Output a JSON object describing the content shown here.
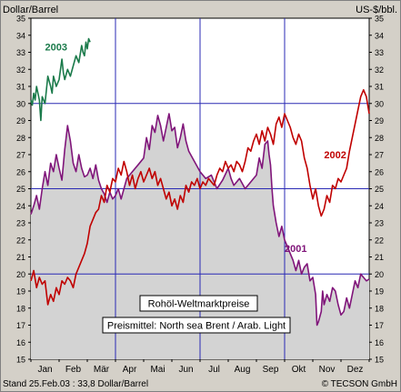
{
  "header": {
    "left_unit": "Dollar/Barrel",
    "right_unit": "US-$/bbl."
  },
  "footer": {
    "stand": "Stand  25.Feb.03  :  33,8 Dollar/Barrel",
    "copyright": "© TECSON GmbH"
  },
  "legend": {
    "title": "Rohöl-Weltmarktpreise",
    "subtitle": "Preismittel: North sea Brent / Arab. Light"
  },
  "colors": {
    "background": "#d4d0c8",
    "plot": "#ffffff",
    "area": "#d3d3d3",
    "grid": "#2a2ab4",
    "s2001": "#80157a",
    "s2002": "#c00000",
    "s2003": "#1a7a4a"
  },
  "chart_data": {
    "type": "line",
    "title": "Rohöl-Weltmarktpreise",
    "subtitle": "Preismittel: North sea Brent / Arab. Light",
    "ylabel": "Dollar/Barrel",
    "ylabel_right": "US-$/bbl.",
    "ylim": [
      15,
      35
    ],
    "yticks": [
      15,
      16,
      17,
      18,
      19,
      20,
      21,
      22,
      23,
      24,
      25,
      26,
      27,
      28,
      29,
      30,
      31,
      32,
      33,
      34,
      35
    ],
    "xlim": [
      0,
      12
    ],
    "categories": [
      "Jan",
      "Feb",
      "Mär",
      "Apr",
      "Mai",
      "Jun",
      "Jul",
      "Aug",
      "Sep",
      "Okt",
      "Nov",
      "Dez"
    ],
    "grid": true,
    "series": [
      {
        "name": "2001",
        "label_position": [
          9.0,
          21.3
        ],
        "points": [
          [
            0.0,
            23.5
          ],
          [
            0.1,
            24.0
          ],
          [
            0.2,
            24.6
          ],
          [
            0.3,
            23.8
          ],
          [
            0.4,
            25.0
          ],
          [
            0.5,
            26.0
          ],
          [
            0.6,
            25.2
          ],
          [
            0.7,
            26.5
          ],
          [
            0.8,
            26.0
          ],
          [
            0.9,
            27.0
          ],
          [
            1.0,
            26.2
          ],
          [
            1.1,
            25.5
          ],
          [
            1.2,
            27.3
          ],
          [
            1.3,
            28.7
          ],
          [
            1.4,
            27.8
          ],
          [
            1.5,
            26.5
          ],
          [
            1.6,
            26.0
          ],
          [
            1.7,
            27.0
          ],
          [
            1.8,
            26.2
          ],
          [
            1.9,
            25.7
          ],
          [
            2.0,
            25.8
          ],
          [
            2.1,
            26.2
          ],
          [
            2.2,
            25.6
          ],
          [
            2.3,
            26.4
          ],
          [
            2.4,
            25.5
          ],
          [
            2.5,
            25.0
          ],
          [
            2.6,
            24.7
          ],
          [
            2.7,
            24.2
          ],
          [
            2.8,
            24.8
          ],
          [
            2.9,
            24.4
          ],
          [
            3.0,
            24.6
          ],
          [
            3.1,
            25.0
          ],
          [
            3.2,
            24.4
          ],
          [
            3.3,
            25.0
          ],
          [
            3.4,
            25.6
          ],
          [
            3.6,
            26.0
          ],
          [
            3.8,
            26.4
          ],
          [
            4.0,
            26.8
          ],
          [
            4.1,
            28.0
          ],
          [
            4.2,
            27.3
          ],
          [
            4.3,
            28.7
          ],
          [
            4.4,
            28.3
          ],
          [
            4.5,
            29.3
          ],
          [
            4.6,
            28.7
          ],
          [
            4.7,
            27.8
          ],
          [
            4.8,
            28.6
          ],
          [
            4.9,
            29.4
          ],
          [
            5.0,
            28.4
          ],
          [
            5.1,
            28.6
          ],
          [
            5.2,
            27.4
          ],
          [
            5.3,
            28.0
          ],
          [
            5.4,
            28.8
          ],
          [
            5.5,
            27.8
          ],
          [
            5.6,
            27.2
          ],
          [
            5.8,
            26.6
          ],
          [
            6.0,
            26.0
          ],
          [
            6.2,
            25.6
          ],
          [
            6.4,
            25.8
          ],
          [
            6.6,
            25.0
          ],
          [
            6.8,
            25.5
          ],
          [
            7.0,
            26.2
          ],
          [
            7.1,
            25.6
          ],
          [
            7.2,
            25.2
          ],
          [
            7.4,
            25.6
          ],
          [
            7.6,
            25.0
          ],
          [
            7.8,
            25.4
          ],
          [
            8.0,
            25.8
          ],
          [
            8.1,
            26.8
          ],
          [
            8.2,
            26.2
          ],
          [
            8.3,
            27.6
          ],
          [
            8.4,
            27.8
          ],
          [
            8.45,
            27.0
          ],
          [
            8.5,
            26.4
          ],
          [
            8.55,
            25.0
          ],
          [
            8.6,
            24.0
          ],
          [
            8.7,
            23.0
          ],
          [
            8.8,
            22.2
          ],
          [
            8.9,
            22.8
          ],
          [
            9.0,
            22.0
          ],
          [
            9.1,
            21.6
          ],
          [
            9.2,
            21.2
          ],
          [
            9.3,
            20.8
          ],
          [
            9.4,
            20.2
          ],
          [
            9.5,
            20.8
          ],
          [
            9.6,
            20.0
          ],
          [
            9.7,
            20.4
          ],
          [
            9.8,
            20.6
          ],
          [
            9.9,
            19.6
          ],
          [
            10.0,
            19.8
          ],
          [
            10.1,
            18.8
          ],
          [
            10.15,
            17.0
          ],
          [
            10.2,
            17.2
          ],
          [
            10.3,
            17.8
          ],
          [
            10.35,
            19.0
          ],
          [
            10.4,
            18.2
          ],
          [
            10.5,
            18.8
          ],
          [
            10.6,
            18.4
          ],
          [
            10.7,
            19.2
          ],
          [
            10.8,
            19.0
          ],
          [
            10.9,
            18.2
          ],
          [
            11.0,
            17.6
          ],
          [
            11.1,
            17.8
          ],
          [
            11.2,
            18.6
          ],
          [
            11.3,
            18.0
          ],
          [
            11.4,
            18.8
          ],
          [
            11.5,
            19.6
          ],
          [
            11.6,
            19.2
          ],
          [
            11.7,
            20.0
          ],
          [
            11.8,
            19.8
          ],
          [
            11.9,
            19.6
          ],
          [
            12.0,
            19.7
          ]
        ]
      },
      {
        "name": "2002",
        "label_position": [
          10.4,
          26.8
        ],
        "points": [
          [
            0.0,
            19.6
          ],
          [
            0.1,
            20.2
          ],
          [
            0.2,
            19.2
          ],
          [
            0.3,
            19.8
          ],
          [
            0.4,
            19.4
          ],
          [
            0.5,
            19.6
          ],
          [
            0.6,
            18.2
          ],
          [
            0.7,
            18.8
          ],
          [
            0.8,
            18.4
          ],
          [
            0.9,
            19.2
          ],
          [
            1.0,
            18.8
          ],
          [
            1.1,
            19.6
          ],
          [
            1.2,
            19.4
          ],
          [
            1.3,
            19.8
          ],
          [
            1.4,
            19.6
          ],
          [
            1.5,
            19.2
          ],
          [
            1.6,
            20.0
          ],
          [
            1.7,
            20.4
          ],
          [
            1.8,
            20.8
          ],
          [
            1.9,
            21.2
          ],
          [
            2.0,
            21.8
          ],
          [
            2.1,
            22.8
          ],
          [
            2.2,
            23.2
          ],
          [
            2.3,
            23.6
          ],
          [
            2.4,
            23.8
          ],
          [
            2.5,
            24.6
          ],
          [
            2.6,
            24.2
          ],
          [
            2.7,
            25.2
          ],
          [
            2.8,
            24.8
          ],
          [
            2.9,
            25.6
          ],
          [
            3.0,
            25.4
          ],
          [
            3.1,
            26.2
          ],
          [
            3.2,
            25.8
          ],
          [
            3.3,
            26.6
          ],
          [
            3.4,
            26.0
          ],
          [
            3.5,
            25.2
          ],
          [
            3.6,
            25.8
          ],
          [
            3.7,
            25.0
          ],
          [
            3.8,
            25.6
          ],
          [
            3.9,
            26.0
          ],
          [
            4.0,
            25.4
          ],
          [
            4.1,
            25.8
          ],
          [
            4.2,
            26.2
          ],
          [
            4.3,
            25.6
          ],
          [
            4.4,
            26.0
          ],
          [
            4.5,
            25.2
          ],
          [
            4.6,
            25.6
          ],
          [
            4.7,
            25.0
          ],
          [
            4.8,
            24.4
          ],
          [
            4.9,
            24.8
          ],
          [
            5.0,
            24.0
          ],
          [
            5.1,
            24.4
          ],
          [
            5.2,
            23.8
          ],
          [
            5.3,
            24.6
          ],
          [
            5.4,
            24.2
          ],
          [
            5.5,
            25.2
          ],
          [
            5.6,
            24.8
          ],
          [
            5.7,
            25.4
          ],
          [
            5.8,
            25.2
          ],
          [
            5.9,
            25.6
          ],
          [
            6.0,
            25.0
          ],
          [
            6.1,
            25.4
          ],
          [
            6.2,
            25.2
          ],
          [
            6.3,
            25.6
          ],
          [
            6.4,
            25.4
          ],
          [
            6.5,
            25.2
          ],
          [
            6.6,
            25.8
          ],
          [
            6.7,
            26.2
          ],
          [
            6.8,
            26.0
          ],
          [
            6.9,
            26.6
          ],
          [
            7.0,
            26.2
          ],
          [
            7.1,
            26.4
          ],
          [
            7.2,
            26.0
          ],
          [
            7.3,
            26.6
          ],
          [
            7.4,
            26.4
          ],
          [
            7.5,
            26.0
          ],
          [
            7.6,
            26.6
          ],
          [
            7.7,
            27.4
          ],
          [
            7.8,
            27.2
          ],
          [
            7.9,
            27.8
          ],
          [
            8.0,
            28.2
          ],
          [
            8.1,
            27.6
          ],
          [
            8.2,
            28.4
          ],
          [
            8.3,
            27.8
          ],
          [
            8.4,
            28.6
          ],
          [
            8.5,
            28.2
          ],
          [
            8.6,
            27.6
          ],
          [
            8.7,
            28.8
          ],
          [
            8.8,
            29.2
          ],
          [
            8.9,
            28.6
          ],
          [
            9.0,
            29.4
          ],
          [
            9.1,
            29.0
          ],
          [
            9.2,
            28.6
          ],
          [
            9.3,
            28.0
          ],
          [
            9.4,
            27.6
          ],
          [
            9.5,
            28.2
          ],
          [
            9.6,
            27.8
          ],
          [
            9.7,
            26.8
          ],
          [
            9.8,
            26.2
          ],
          [
            9.9,
            25.2
          ],
          [
            10.0,
            24.4
          ],
          [
            10.1,
            25.0
          ],
          [
            10.2,
            24.0
          ],
          [
            10.3,
            23.4
          ],
          [
            10.4,
            23.8
          ],
          [
            10.5,
            24.6
          ],
          [
            10.6,
            24.2
          ],
          [
            10.7,
            25.2
          ],
          [
            10.8,
            25.0
          ],
          [
            10.9,
            25.6
          ],
          [
            11.0,
            25.4
          ],
          [
            11.1,
            25.8
          ],
          [
            11.2,
            26.2
          ],
          [
            11.3,
            27.2
          ],
          [
            11.4,
            28.0
          ],
          [
            11.5,
            28.8
          ],
          [
            11.6,
            29.6
          ],
          [
            11.7,
            30.4
          ],
          [
            11.8,
            30.8
          ],
          [
            11.9,
            30.4
          ],
          [
            12.0,
            29.4
          ]
        ]
      },
      {
        "name": "2003",
        "label_position": [
          0.5,
          33.1
        ],
        "points": [
          [
            0.0,
            30.2
          ],
          [
            0.05,
            29.9
          ],
          [
            0.1,
            30.6
          ],
          [
            0.15,
            30.2
          ],
          [
            0.2,
            31.0
          ],
          [
            0.3,
            30.2
          ],
          [
            0.35,
            29.0
          ],
          [
            0.4,
            30.4
          ],
          [
            0.5,
            30.0
          ],
          [
            0.6,
            31.6
          ],
          [
            0.7,
            31.0
          ],
          [
            0.75,
            30.6
          ],
          [
            0.8,
            31.6
          ],
          [
            0.9,
            31.0
          ],
          [
            1.0,
            31.4
          ],
          [
            1.1,
            32.6
          ],
          [
            1.15,
            31.8
          ],
          [
            1.2,
            31.4
          ],
          [
            1.3,
            32.0
          ],
          [
            1.4,
            31.6
          ],
          [
            1.5,
            32.2
          ],
          [
            1.6,
            32.8
          ],
          [
            1.7,
            32.4
          ],
          [
            1.8,
            33.4
          ],
          [
            1.85,
            33.0
          ],
          [
            1.9,
            32.8
          ],
          [
            1.95,
            33.6
          ],
          [
            2.0,
            33.2
          ],
          [
            2.05,
            33.8
          ],
          [
            2.1,
            33.6
          ]
        ]
      }
    ]
  }
}
